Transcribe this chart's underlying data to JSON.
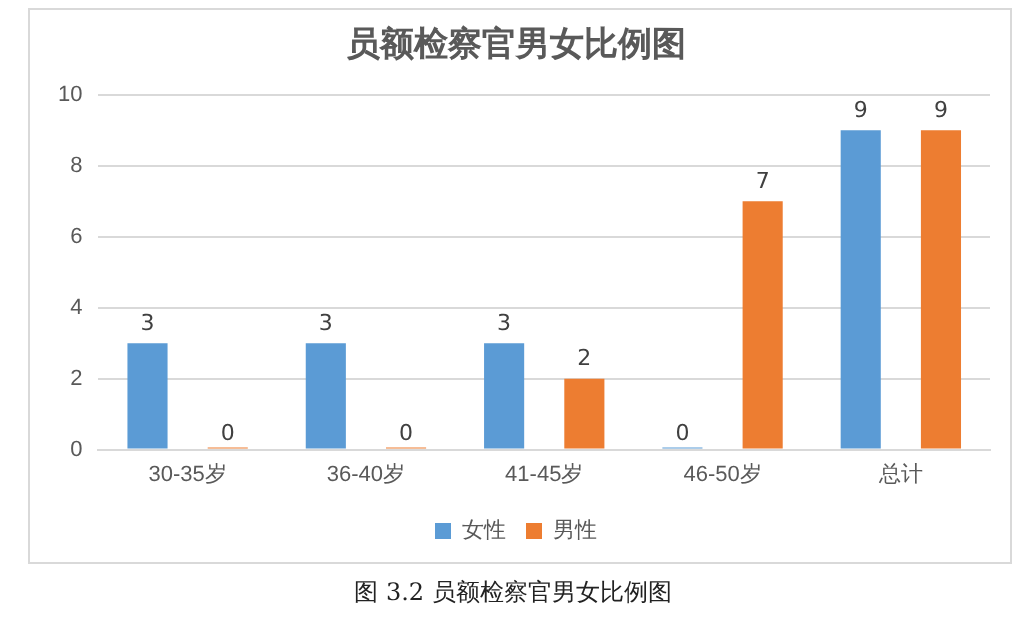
{
  "chart_data": {
    "type": "bar",
    "title": "员额检察官男女比例图",
    "categories": [
      "30-35岁",
      "36-40岁",
      "41-45岁",
      "46-50岁",
      "总计"
    ],
    "series": [
      {
        "name": "女性",
        "color": "#5b9bd5",
        "values": [
          3,
          3,
          3,
          0,
          9
        ]
      },
      {
        "name": "男性",
        "color": "#ed7d31",
        "values": [
          0,
          0,
          2,
          7,
          9
        ]
      }
    ],
    "ylim": [
      0,
      10
    ],
    "yticks": [
      0,
      2,
      4,
      6,
      8,
      10
    ],
    "grid": "y",
    "legend": "bottom",
    "data_labels": true,
    "annotations": [
      "图 3.2 员额检察官男女比例图"
    ]
  }
}
